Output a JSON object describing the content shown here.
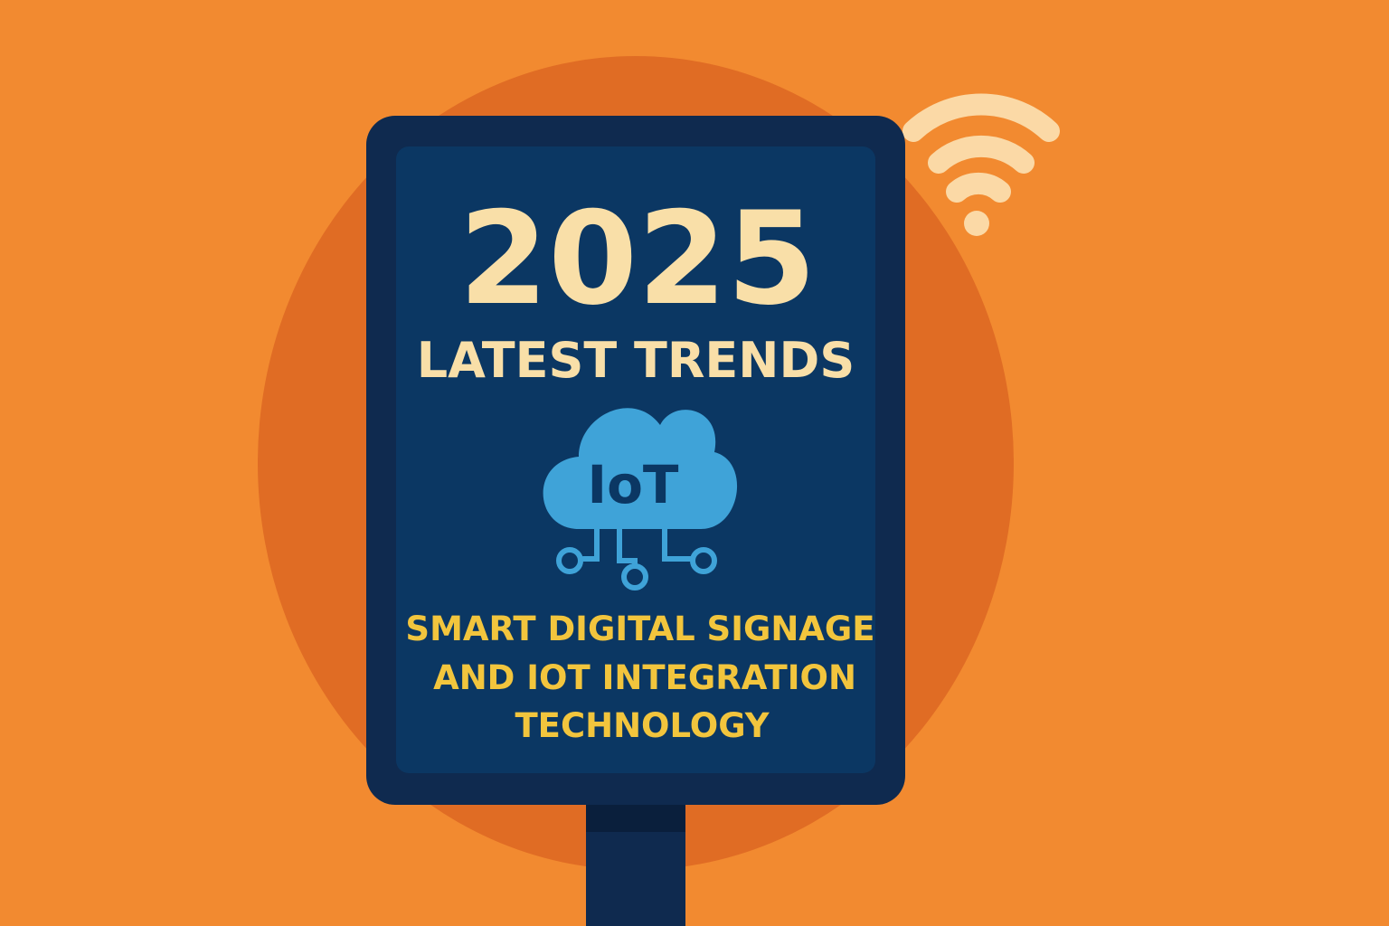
{
  "sign": {
    "year": "2025",
    "headline": "LATEST TRENDS",
    "icon_label": "IoT",
    "subtitle_lines": [
      "SMART DIGITAL SIGNAGE",
      "AND IOT INTEGRATION",
      "TECHNOLOGY"
    ]
  }
}
